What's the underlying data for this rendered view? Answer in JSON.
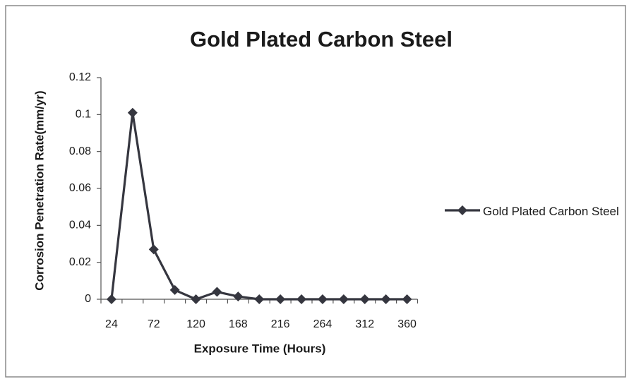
{
  "chart_data": {
    "type": "line",
    "title": "Gold Plated Carbon Steel",
    "x_label": "Exposure Time (Hours)",
    "y_label": "Corrosion Penetration Rate(mm/yr)",
    "categories": [
      "24",
      null,
      "72",
      null,
      "120",
      null,
      "168",
      null,
      "216",
      null,
      "264",
      null,
      "312",
      null,
      "360"
    ],
    "series": [
      {
        "name": "Gold Plated Carbon Steel",
        "color": "#35363f",
        "values": [
          0,
          0.101,
          0.027,
          0.005,
          0,
          0.004,
          0.0015,
          0,
          0,
          0,
          0,
          0,
          0,
          0,
          0
        ]
      }
    ],
    "ylim": [
      0,
      0.12
    ],
    "yticks": [
      0,
      0.02,
      0.04,
      0.06,
      0.08,
      0.1,
      0.12
    ],
    "grid": false,
    "legend": "right"
  }
}
